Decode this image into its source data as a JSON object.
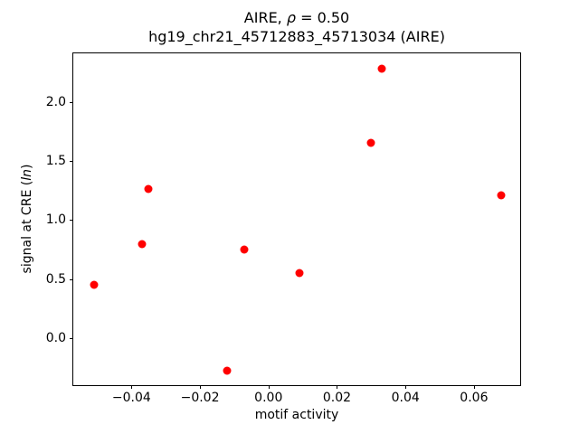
{
  "chart_data": {
    "type": "scatter",
    "title": "AIRE, ρ = 0.50",
    "title_parts": {
      "prefix": "AIRE, ",
      "rho": "ρ",
      "suffix": " = 0.50"
    },
    "subtitle": "hg19_chr21_45712883_45713034 (AIRE)",
    "xlabel": "motif activity",
    "ylabel": "signal at CRE (ln)",
    "ylabel_parts": {
      "prefix": "signal at CRE (",
      "italic": "ln",
      "suffix": ")"
    },
    "marker_color": "#ff0000",
    "axis_color": "#000000",
    "background_color": "#ffffff",
    "grid": false,
    "legend": null,
    "xlim": [
      -0.057,
      0.0735
    ],
    "ylim": [
      -0.395,
      2.41
    ],
    "x_ticks": [
      {
        "value": -0.04,
        "label": "−0.04"
      },
      {
        "value": -0.02,
        "label": "−0.02"
      },
      {
        "value": 0.0,
        "label": "0.00"
      },
      {
        "value": 0.02,
        "label": "0.02"
      },
      {
        "value": 0.04,
        "label": "0.04"
      },
      {
        "value": 0.06,
        "label": "0.06"
      }
    ],
    "y_ticks": [
      {
        "value": 0.0,
        "label": "0.0"
      },
      {
        "value": 0.5,
        "label": "0.5"
      },
      {
        "value": 1.0,
        "label": "1.0"
      },
      {
        "value": 1.5,
        "label": "1.5"
      },
      {
        "value": 2.0,
        "label": "2.0"
      }
    ],
    "points": [
      {
        "x": -0.051,
        "y": 0.45
      },
      {
        "x": -0.037,
        "y": 0.8
      },
      {
        "x": -0.035,
        "y": 1.26
      },
      {
        "x": -0.012,
        "y": -0.27
      },
      {
        "x": -0.007,
        "y": 0.75
      },
      {
        "x": 0.009,
        "y": 0.55
      },
      {
        "x": 0.03,
        "y": 1.65
      },
      {
        "x": 0.033,
        "y": 2.28
      },
      {
        "x": 0.068,
        "y": 1.21
      }
    ]
  }
}
